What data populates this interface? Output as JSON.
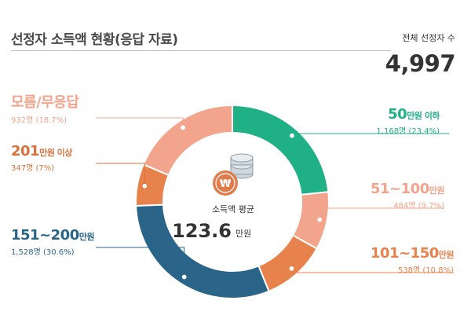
{
  "header": {
    "title": "선정자 소득액 현황(응답 자료)"
  },
  "total": {
    "label": "전체 선정자 수",
    "value": "4,997"
  },
  "center": {
    "label": "소득액 평균",
    "value": "123.6",
    "unit": "만원"
  },
  "colors": {
    "teal": "#1fb185",
    "light_salmon": "#f2a58c",
    "orange": "#e8824d",
    "navy": "#2a6589",
    "brown": "#d9713b",
    "coin": "#e07b4c"
  },
  "chart_data": {
    "type": "pie",
    "title": "선정자 소득액 현황(응답 자료)",
    "categories": [
      "50만원 이하",
      "51~100만원",
      "101~150만원",
      "151~200만원",
      "201만원 이상",
      "모름/무응답"
    ],
    "values": [
      23.4,
      9.7,
      10.8,
      30.6,
      7,
      18.7
    ],
    "counts": [
      1168,
      484,
      538,
      1528,
      347,
      932
    ],
    "segment_colors": [
      "#1fb185",
      "#f2a58c",
      "#e8824d",
      "#2a6589",
      "#e8824d",
      "#f2a58c"
    ]
  },
  "labels": [
    {
      "head": "50",
      "unit": "만원 이하",
      "sub": "1,168명 (23.4%)",
      "color": "#1fb185"
    },
    {
      "head": "51~100",
      "unit": "만원",
      "sub": "484명 (9.7%)",
      "color": "#f2a58c"
    },
    {
      "head": "101~150",
      "unit": "만원",
      "sub": "538명 (10.8%)",
      "color": "#e8824d"
    },
    {
      "head": "151~200",
      "unit": "만원",
      "sub": "1,528명 (30.6%)",
      "color": "#2a6589"
    },
    {
      "head": "201",
      "unit": "만원 이상",
      "sub": "347명 (7%)",
      "color": "#d9713b"
    },
    {
      "head": "모름/무응답",
      "unit": "",
      "sub": "932명 (18.7%)",
      "color": "#f2a58c"
    }
  ]
}
